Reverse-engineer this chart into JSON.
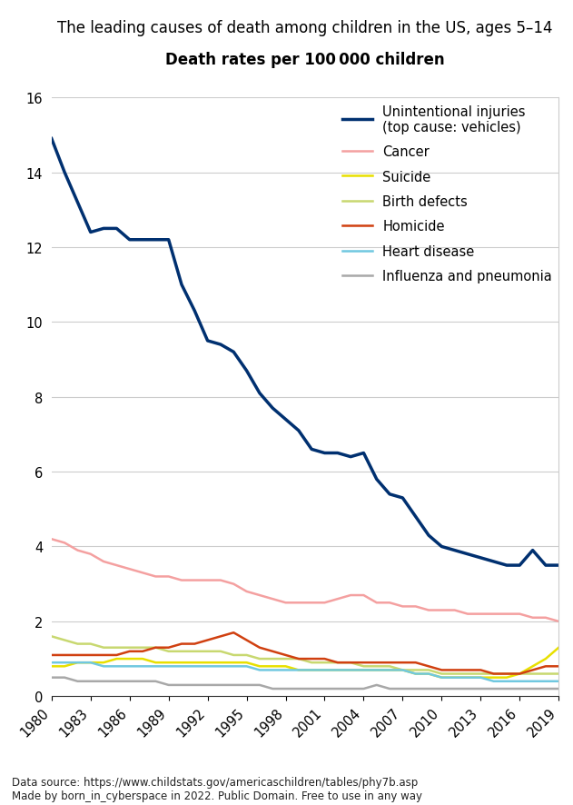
{
  "title": "The leading causes of death among children in the US, ages 5–14",
  "subtitle": "Death rates per 100 000 children",
  "footnote": "Data source: https://www.childstats.gov/americaschildren/tables/phy7b.asp\nMade by born_in_cyberspace in 2022. Public Domain. Free to use in any way",
  "years": [
    1980,
    1981,
    1982,
    1983,
    1984,
    1985,
    1986,
    1987,
    1988,
    1989,
    1990,
    1991,
    1992,
    1993,
    1994,
    1995,
    1996,
    1997,
    1998,
    1999,
    2000,
    2001,
    2002,
    2003,
    2004,
    2005,
    2006,
    2007,
    2008,
    2009,
    2010,
    2011,
    2012,
    2013,
    2014,
    2015,
    2016,
    2017,
    2018,
    2019
  ],
  "series": [
    {
      "label": "Unintentional injuries\n(top cause: vehicles)",
      "color": "#003070",
      "linewidth": 2.5,
      "values": [
        14.9,
        14.0,
        13.2,
        12.4,
        12.5,
        12.5,
        12.2,
        12.2,
        12.2,
        12.2,
        11.0,
        10.3,
        9.5,
        9.4,
        9.2,
        8.7,
        8.1,
        7.7,
        7.4,
        7.1,
        6.6,
        6.5,
        6.5,
        6.4,
        6.5,
        5.8,
        5.4,
        5.3,
        4.8,
        4.3,
        4.0,
        3.9,
        3.8,
        3.7,
        3.6,
        3.5,
        3.5,
        3.9,
        3.5,
        3.5
      ]
    },
    {
      "label": "Cancer",
      "color": "#f4a0a0",
      "linewidth": 1.8,
      "values": [
        4.2,
        4.1,
        3.9,
        3.8,
        3.6,
        3.5,
        3.4,
        3.3,
        3.2,
        3.2,
        3.1,
        3.1,
        3.1,
        3.1,
        3.0,
        2.8,
        2.7,
        2.6,
        2.5,
        2.5,
        2.5,
        2.5,
        2.6,
        2.7,
        2.7,
        2.5,
        2.5,
        2.4,
        2.4,
        2.3,
        2.3,
        2.3,
        2.2,
        2.2,
        2.2,
        2.2,
        2.2,
        2.1,
        2.1,
        2.0
      ]
    },
    {
      "label": "Suicide",
      "color": "#e8e000",
      "linewidth": 1.8,
      "values": [
        0.8,
        0.8,
        0.9,
        0.9,
        0.9,
        1.0,
        1.0,
        1.0,
        0.9,
        0.9,
        0.9,
        0.9,
        0.9,
        0.9,
        0.9,
        0.9,
        0.8,
        0.8,
        0.8,
        0.7,
        0.7,
        0.7,
        0.7,
        0.7,
        0.7,
        0.7,
        0.7,
        0.7,
        0.6,
        0.6,
        0.5,
        0.5,
        0.5,
        0.5,
        0.5,
        0.5,
        0.6,
        0.8,
        1.0,
        1.3
      ]
    },
    {
      "label": "Birth defects",
      "color": "#c8d870",
      "linewidth": 1.8,
      "values": [
        1.6,
        1.5,
        1.4,
        1.4,
        1.3,
        1.3,
        1.3,
        1.3,
        1.3,
        1.2,
        1.2,
        1.2,
        1.2,
        1.2,
        1.1,
        1.1,
        1.0,
        1.0,
        1.0,
        1.0,
        0.9,
        0.9,
        0.9,
        0.9,
        0.8,
        0.8,
        0.8,
        0.7,
        0.7,
        0.7,
        0.6,
        0.6,
        0.6,
        0.6,
        0.6,
        0.6,
        0.6,
        0.6,
        0.6,
        0.6
      ]
    },
    {
      "label": "Homicide",
      "color": "#d04010",
      "linewidth": 1.8,
      "values": [
        1.1,
        1.1,
        1.1,
        1.1,
        1.1,
        1.1,
        1.2,
        1.2,
        1.3,
        1.3,
        1.4,
        1.4,
        1.5,
        1.6,
        1.7,
        1.5,
        1.3,
        1.2,
        1.1,
        1.0,
        1.0,
        1.0,
        0.9,
        0.9,
        0.9,
        0.9,
        0.9,
        0.9,
        0.9,
        0.8,
        0.7,
        0.7,
        0.7,
        0.7,
        0.6,
        0.6,
        0.6,
        0.7,
        0.8,
        0.8
      ]
    },
    {
      "label": "Heart disease",
      "color": "#70c8e0",
      "linewidth": 1.8,
      "values": [
        0.9,
        0.9,
        0.9,
        0.9,
        0.8,
        0.8,
        0.8,
        0.8,
        0.8,
        0.8,
        0.8,
        0.8,
        0.8,
        0.8,
        0.8,
        0.8,
        0.7,
        0.7,
        0.7,
        0.7,
        0.7,
        0.7,
        0.7,
        0.7,
        0.7,
        0.7,
        0.7,
        0.7,
        0.6,
        0.6,
        0.5,
        0.5,
        0.5,
        0.5,
        0.4,
        0.4,
        0.4,
        0.4,
        0.4,
        0.4
      ]
    },
    {
      "label": "Influenza and pneumonia",
      "color": "#a8a8a8",
      "linewidth": 1.8,
      "values": [
        0.5,
        0.5,
        0.4,
        0.4,
        0.4,
        0.4,
        0.4,
        0.4,
        0.4,
        0.3,
        0.3,
        0.3,
        0.3,
        0.3,
        0.3,
        0.3,
        0.3,
        0.2,
        0.2,
        0.2,
        0.2,
        0.2,
        0.2,
        0.2,
        0.2,
        0.3,
        0.2,
        0.2,
        0.2,
        0.2,
        0.2,
        0.2,
        0.2,
        0.2,
        0.2,
        0.2,
        0.2,
        0.2,
        0.2,
        0.2
      ]
    }
  ],
  "ylim": [
    0,
    16
  ],
  "yticks": [
    0,
    2,
    4,
    6,
    8,
    10,
    12,
    14,
    16
  ],
  "xtick_years": [
    1980,
    1983,
    1986,
    1989,
    1992,
    1995,
    1998,
    2001,
    2004,
    2007,
    2010,
    2013,
    2016,
    2019
  ],
  "xmin": 1980,
  "xmax": 2019,
  "background_color": "#ffffff",
  "grid_color": "#cccccc",
  "title_fontsize": 12.0,
  "subtitle_fontsize": 12.0,
  "footnote_fontsize": 8.5,
  "legend_fontsize": 10.5,
  "tick_fontsize": 10.5
}
